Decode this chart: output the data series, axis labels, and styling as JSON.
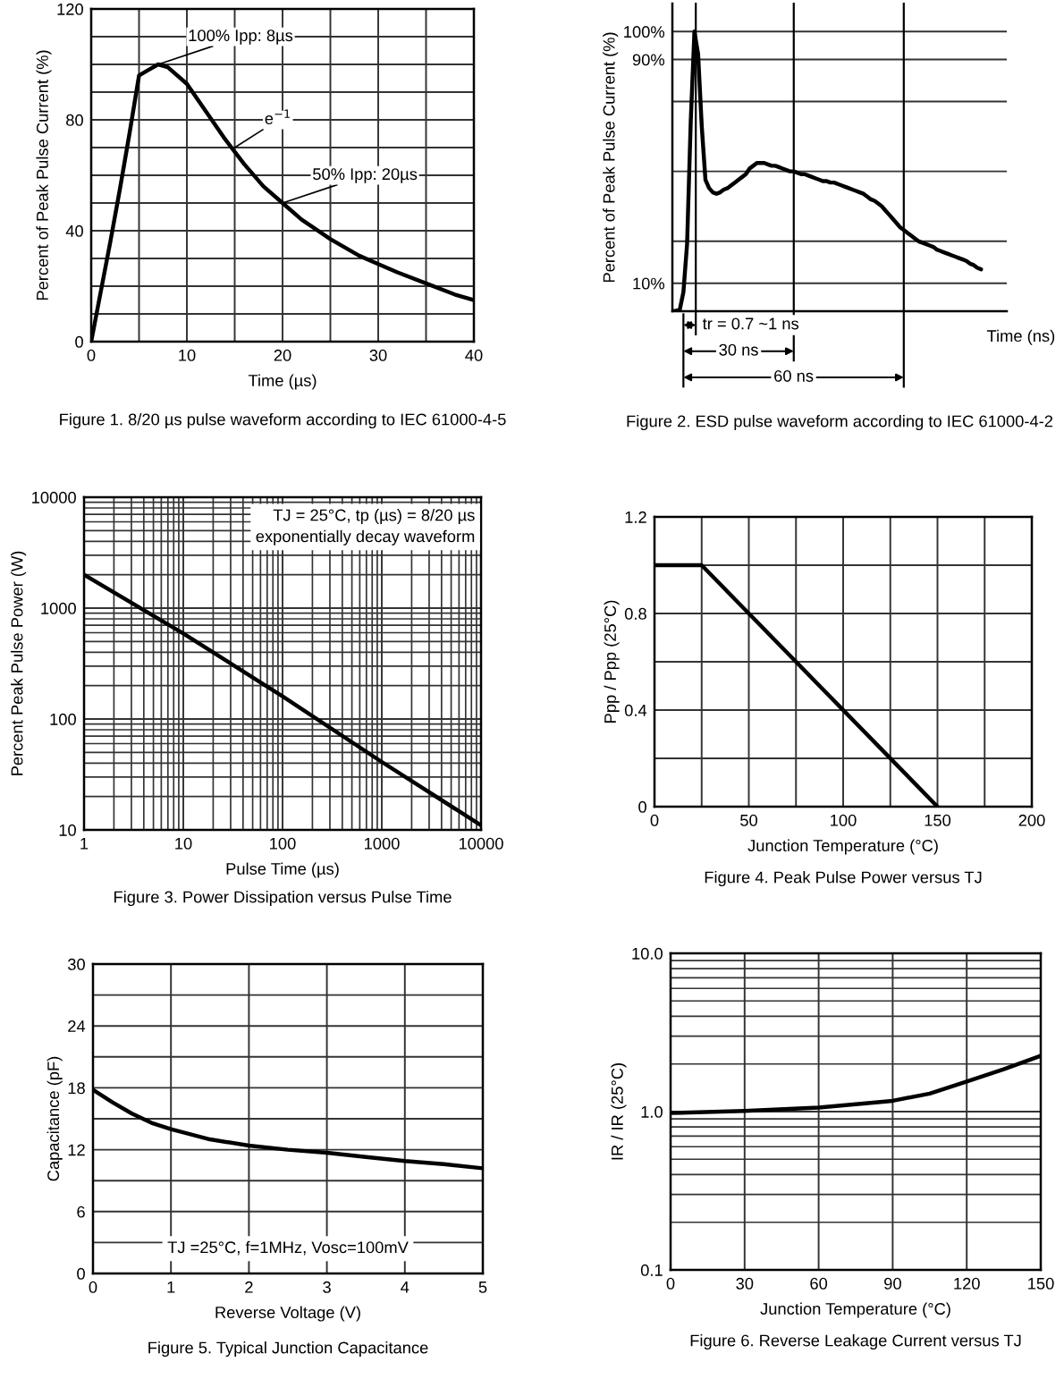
{
  "chart_data": [
    {
      "type": "line",
      "title": "Figure 1. 8/20 µs pulse waveform according to IEC 61000-4-5",
      "xlabel": "Time (µs)",
      "ylabel": "Percent of Peak Pulse Current (%)",
      "x": [
        0,
        1,
        2,
        3,
        4,
        5,
        6,
        7,
        8,
        10,
        12,
        14,
        16,
        18,
        20,
        22,
        25,
        28,
        30,
        32,
        35,
        38,
        40
      ],
      "series": [
        {
          "color": "#000000",
          "values": [
            0,
            18,
            36,
            55,
            75,
            96,
            98,
            100,
            99,
            93,
            83,
            73,
            64,
            56,
            50,
            44,
            37,
            31,
            28,
            25,
            21,
            17,
            15
          ]
        }
      ],
      "xlim": [
        0,
        40
      ],
      "ylim": [
        0,
        120
      ],
      "xticks": [
        0,
        {
          "value": 5,
          "label": null
        },
        10,
        {
          "value": 15,
          "label": null
        },
        20,
        {
          "value": 25,
          "label": null
        },
        30,
        {
          "value": 35,
          "label": null
        },
        40
      ],
      "yticks": [
        0,
        {
          "value": 10,
          "label": null
        },
        {
          "value": 20,
          "label": null
        },
        {
          "value": 30,
          "label": null
        },
        40,
        {
          "value": 50,
          "label": null
        },
        {
          "value": 60,
          "label": null
        },
        {
          "value": 70,
          "label": null
        },
        80,
        {
          "value": 90,
          "label": null
        },
        {
          "value": 100,
          "label": null
        },
        {
          "value": 110,
          "label": null
        },
        120
      ],
      "annotations": [
        {
          "text": "100% Ipp: 8µs",
          "x": 7,
          "y": 100
        },
        {
          "text": "e$^{−1}$",
          "x": 15,
          "y": 70
        },
        {
          "text": "50% Ipp: 20µs",
          "x": 20,
          "y": 50
        }
      ],
      "grid": true
    },
    {
      "type": "line",
      "title": "Figure 2. ESD pulse waveform according to IEC 61000-4-2",
      "xlabel": "Time (ns)",
      "ylabel": "Percent of Peak Pulse Current (%)",
      "categories": [
        null,
        null,
        null,
        null,
        null,
        null,
        null,
        null,
        null,
        null,
        null,
        null,
        null,
        null,
        null,
        null,
        null,
        null,
        null,
        null,
        null,
        null,
        null,
        null,
        null,
        null,
        null,
        null,
        null,
        null,
        null,
        null,
        null,
        null,
        null,
        null,
        null,
        null,
        null,
        null,
        null,
        null,
        null,
        null,
        null,
        null,
        null,
        null,
        null,
        null,
        null,
        null,
        null,
        null,
        null,
        null,
        null,
        null,
        null,
        null,
        null,
        null,
        null,
        null,
        null,
        null,
        null,
        null,
        null,
        null,
        null,
        null,
        null,
        null,
        null,
        null,
        null,
        null,
        null,
        null,
        null,
        null,
        null,
        null,
        null
      ],
      "series": [
        {
          "color": "#000000",
          "values": [
            0,
            0.2,
            0.5,
            6.8,
            24,
            68,
            100,
            92,
            66,
            47,
            44,
            42.5,
            42,
            42.5,
            43.5,
            44,
            45,
            46,
            47,
            48,
            49,
            51,
            52,
            53,
            53,
            53,
            52.5,
            52,
            52,
            51.5,
            51,
            50.5,
            50,
            50,
            49.5,
            49,
            49,
            48.5,
            48,
            47.5,
            47,
            46.5,
            46.5,
            46,
            46,
            45.5,
            45,
            44.5,
            44,
            43.5,
            43,
            42.5,
            42,
            41,
            40,
            39.5,
            38.5,
            37.5,
            36,
            34.5,
            33,
            31.5,
            30,
            29,
            28,
            27,
            26,
            25,
            24.5,
            24,
            23.5,
            23,
            22,
            21.5,
            21,
            20.5,
            20,
            19.5,
            19,
            18.5,
            18,
            17,
            16.5,
            15.5,
            15
          ]
        }
      ],
      "ylim": [
        0,
        110
      ],
      "yticks": [
        {
          "value": 10,
          "label": "10%"
        },
        {
          "value": 25,
          "label": null
        },
        {
          "value": 50,
          "label": null
        },
        {
          "value": 75,
          "label": null
        },
        {
          "value": 90,
          "label": "90%"
        },
        {
          "value": 100,
          "label": "100%"
        }
      ],
      "annotations": [
        "tr = 0.7 ~1 ns",
        "30 ns",
        "60 ns"
      ],
      "grid": "y"
    },
    {
      "type": "line",
      "title": "Figure 3. Power Dissipation versus Pulse Time",
      "xlabel": "Pulse Time (µs)",
      "ylabel": "Percent Peak Pulse Power (W)",
      "x": [
        1,
        10,
        100,
        1000,
        10000
      ],
      "series": [
        {
          "color": "#000000",
          "values": [
            2000,
            590,
            160,
            41,
            11
          ]
        }
      ],
      "log": "xy",
      "xlim": [
        1,
        10000
      ],
      "ylim": [
        10,
        10000
      ],
      "xticks": [
        1,
        10,
        100,
        1000,
        10000
      ],
      "yticks": [
        10,
        100,
        1000,
        10000
      ],
      "annotations": [
        "TJ = 25°C, tp (µs) = 8/20 µs\nexponentially decay waveform"
      ],
      "grid": true
    },
    {
      "type": "line",
      "title": "Figure 4. Peak Pulse Power versus TJ",
      "xlabel": "Junction Temperature (°C)",
      "ylabel": "Ppp / Ppp (25°C)",
      "x": [
        0,
        25,
        150
      ],
      "series": [
        {
          "color": "#000000",
          "values": [
            1,
            1,
            0
          ]
        }
      ],
      "xlim": [
        0,
        200
      ],
      "ylim": [
        0,
        1.2
      ],
      "xticks": [
        0,
        {
          "value": 25,
          "label": null
        },
        50,
        {
          "value": 75,
          "label": null
        },
        100,
        {
          "value": 125,
          "label": null
        },
        150,
        {
          "value": 175,
          "label": null
        },
        200
      ],
      "yticks": [
        0,
        {
          "value": 0.2,
          "label": null
        },
        0.4,
        {
          "value": 0.6,
          "label": null
        },
        0.8,
        {
          "value": 1.0,
          "label": null
        },
        1.2
      ],
      "grid": true
    },
    {
      "type": "line",
      "title": "Figure 5. Typical Junction Capacitance",
      "xlabel": "Reverse Voltage (V)",
      "ylabel": "Capacitance (pF)",
      "x": [
        0,
        0.25,
        0.5,
        0.75,
        1,
        1.5,
        2,
        2.5,
        3,
        3.5,
        4,
        4.5,
        5
      ],
      "series": [
        {
          "color": "#000000",
          "values": [
            17.8,
            16.6,
            15.5,
            14.6,
            14.0,
            13.0,
            12.4,
            12.0,
            11.7,
            11.3,
            10.9,
            10.6,
            10.2
          ]
        }
      ],
      "xlim": [
        0,
        5
      ],
      "ylim": [
        0,
        30
      ],
      "xticks": [
        0,
        1,
        2,
        3,
        4,
        5
      ],
      "yticks": [
        0,
        {
          "value": 3,
          "label": null
        },
        6,
        {
          "value": 9,
          "label": null
        },
        12,
        {
          "value": 15,
          "label": null
        },
        18,
        {
          "value": 21,
          "label": null
        },
        24,
        {
          "value": 27,
          "label": null
        },
        30
      ],
      "annotations": [
        "TJ =25°C, f=1MHz, Vosc=100mV"
      ],
      "grid": true
    },
    {
      "type": "line",
      "title": "Figure 6. Reverse Leakage Current versus TJ",
      "xlabel": "Junction Temperature (°C)",
      "ylabel": "IR / IR (25°C)",
      "x": [
        0,
        30,
        60,
        90,
        105,
        120,
        135,
        150
      ],
      "series": [
        {
          "color": "#000000",
          "values": [
            0.98,
            1.01,
            1.06,
            1.17,
            1.3,
            1.55,
            1.85,
            2.25
          ]
        }
      ],
      "log": "y",
      "xlim": [
        0,
        150
      ],
      "ylim": [
        0.1,
        10
      ],
      "xticks": [
        0,
        30,
        60,
        90,
        120,
        150
      ],
      "yticks": [
        {
          "value": 0.1,
          "label": "0.1"
        },
        {
          "value": 1,
          "label": "1.0"
        },
        {
          "value": 10,
          "label": "10.0"
        }
      ],
      "grid": true
    }
  ]
}
